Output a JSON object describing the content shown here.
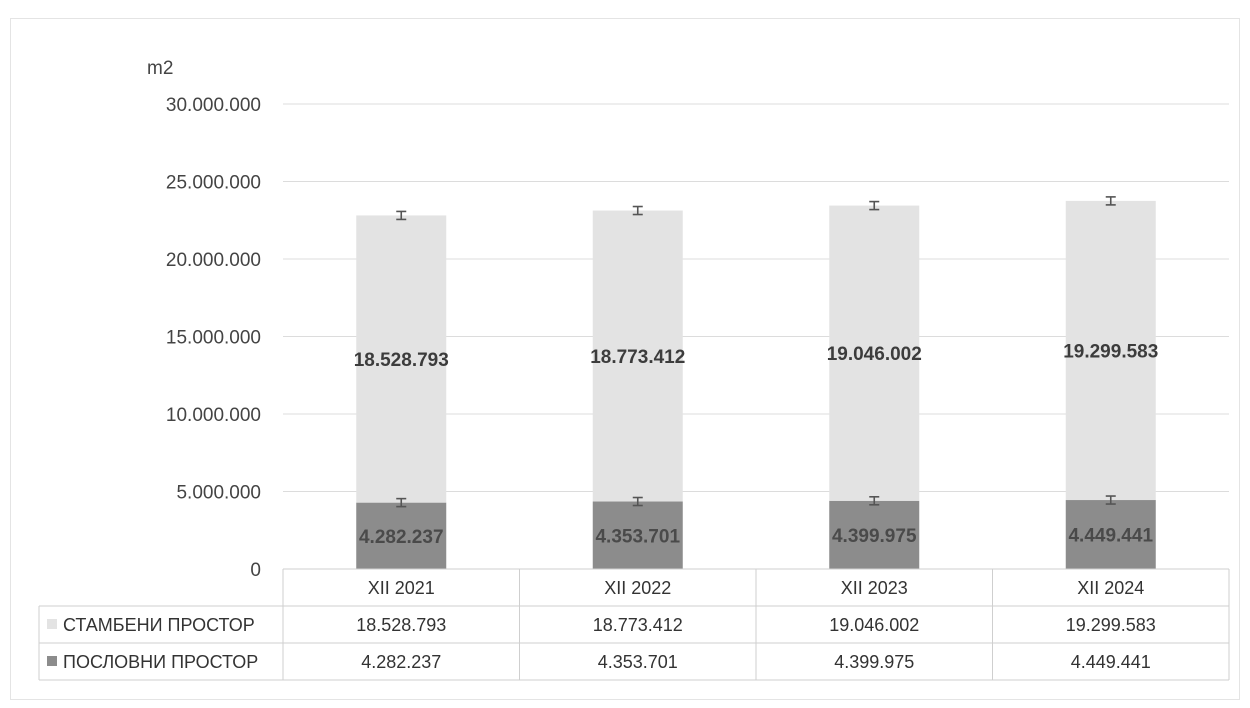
{
  "chart_data": {
    "type": "bar",
    "stacked": true,
    "ylabel": "m2",
    "ylim": [
      0,
      30000000
    ],
    "yticks": [
      "0",
      "5.000.000",
      "10.000.000",
      "15.000.000",
      "20.000.000",
      "25.000.000",
      "30.000.000"
    ],
    "grid": true,
    "categories": [
      "XII 2021",
      "XII 2022",
      "XII 2023",
      "XII 2024"
    ],
    "series": [
      {
        "name": "ПОСЛОВНИ ПРОСТОР",
        "values": [
          4282237,
          4353701,
          4399975,
          4449441
        ],
        "labels": [
          "4.282.237",
          "4.353.701",
          "4.399.975",
          "4.449.441"
        ],
        "color": "#8c8c8c"
      },
      {
        "name": "СТАМБЕНИ ПРОСТОР",
        "values": [
          18528793,
          18773412,
          19046002,
          19299583
        ],
        "labels": [
          "18.528.793",
          "18.773.412",
          "19.046.002",
          "19.299.583"
        ],
        "color": "#e3e3e3"
      }
    ],
    "data_table": {
      "rows": [
        {
          "legend": "СТАМБЕНИ ПРОСТОР",
          "values": [
            "18.528.793",
            "18.773.412",
            "19.046.002",
            "19.299.583"
          ]
        },
        {
          "legend": "ПОСЛОВНИ ПРОСТОР",
          "values": [
            "4.282.237",
            "4.353.701",
            "4.399.975",
            "4.449.441"
          ]
        }
      ]
    }
  }
}
